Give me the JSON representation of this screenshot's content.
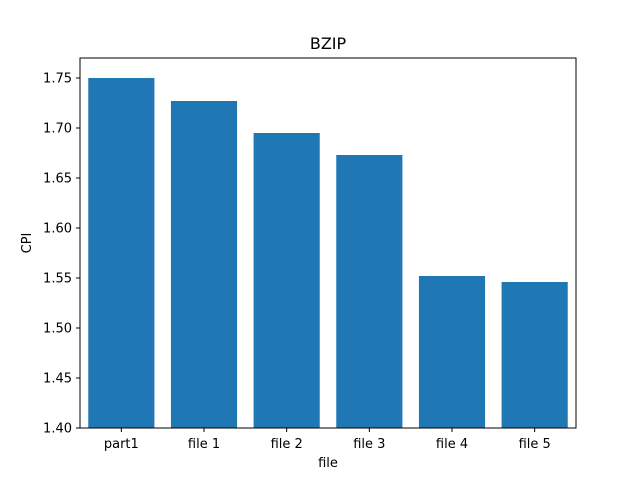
{
  "chart_data": {
    "type": "bar",
    "title": "BZIP",
    "xlabel": "file",
    "ylabel": "CPI",
    "categories": [
      "part1",
      "file 1",
      "file 2",
      "file 3",
      "file 4",
      "file 5"
    ],
    "values": [
      1.75,
      1.727,
      1.695,
      1.673,
      1.552,
      1.546
    ],
    "ylim": [
      1.4,
      1.77
    ],
    "yticks": [
      "1.40",
      "1.45",
      "1.50",
      "1.55",
      "1.60",
      "1.65",
      "1.70",
      "1.75"
    ],
    "grid": false,
    "legend": "none",
    "bar_color": "#1f77b4"
  }
}
